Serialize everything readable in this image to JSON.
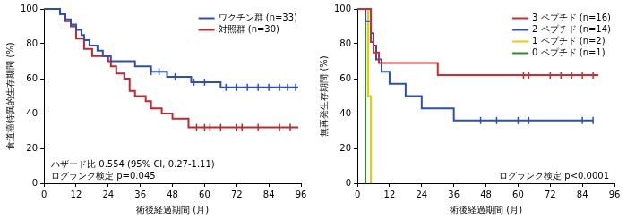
{
  "chart_data": [
    {
      "type": "line",
      "line_style": "step",
      "x_label": "術後経過期間 (月)",
      "y_label": "食道癌特異的生存期間 (%)",
      "xlim": [
        0,
        96
      ],
      "xticks": [
        0,
        12,
        24,
        36,
        48,
        60,
        72,
        84,
        96
      ],
      "ylim": [
        0,
        100
      ],
      "yticks": [
        0,
        20,
        40,
        60,
        80,
        100
      ],
      "grid": false,
      "legend": "top-right",
      "annotations": [
        "ハザード比 0.554 (95% CI, 0.27-1.11)",
        "ログランク検定 p=0.045"
      ],
      "series": [
        {
          "name": "ワクチン群 (n=33)",
          "color": "#2a4fb8",
          "x": [
            0,
            6,
            8,
            10,
            12,
            14,
            15,
            17,
            20,
            22,
            25,
            34,
            40,
            46,
            55,
            66,
            95
          ],
          "values": [
            100,
            97,
            94,
            91,
            88,
            85,
            82,
            79,
            76,
            73,
            70,
            67,
            64,
            61,
            58,
            55,
            55
          ],
          "censored_x": [
            40,
            43,
            49,
            56,
            60,
            68,
            72,
            76,
            80,
            84,
            88,
            91,
            94
          ],
          "censored_values": [
            64,
            64,
            61,
            58,
            58,
            55,
            55,
            55,
            55,
            55,
            55,
            55,
            55
          ]
        },
        {
          "name": "対照群 (n=30)",
          "color": "#c3262e",
          "x": [
            0,
            6,
            8,
            10,
            12,
            15,
            18,
            24,
            25,
            27,
            30,
            32,
            34,
            38,
            40,
            44,
            48,
            54,
            95
          ],
          "values": [
            100,
            97,
            93,
            90,
            83,
            77,
            73,
            70,
            67,
            63,
            60,
            53,
            50,
            47,
            43,
            40,
            37,
            32,
            32
          ],
          "censored_x": [
            57,
            60,
            62,
            66,
            72,
            74,
            80,
            88,
            92
          ],
          "censored_values": [
            32,
            32,
            32,
            32,
            32,
            32,
            32,
            32,
            32
          ]
        }
      ]
    },
    {
      "type": "line",
      "line_style": "step",
      "x_label": "術後経過期間 (月)",
      "y_label": "無再発生存期間 (%)",
      "xlim": [
        0,
        96
      ],
      "xticks": [
        0,
        12,
        24,
        36,
        48,
        60,
        72,
        84,
        96
      ],
      "ylim": [
        0,
        100
      ],
      "yticks": [
        0,
        20,
        40,
        60,
        80,
        100
      ],
      "grid": false,
      "legend": "top-right",
      "annotations": [
        "ログランク検定 p<0.0001"
      ],
      "series": [
        {
          "name": "3 ペプチド (n=16)",
          "color": "#d42a2a",
          "x": [
            0,
            5,
            6,
            8,
            30,
            90
          ],
          "values": [
            100,
            81,
            75,
            69,
            62,
            62
          ],
          "censored_x": [
            62,
            64,
            72,
            76,
            80,
            84,
            88
          ],
          "censored_values": [
            62,
            62,
            62,
            62,
            62,
            62,
            62
          ]
        },
        {
          "name": "2 ペプチド (n=14)",
          "color": "#2a4fb8",
          "x": [
            0,
            3,
            5,
            6,
            7,
            9,
            12,
            18,
            24,
            36,
            88
          ],
          "values": [
            100,
            93,
            86,
            79,
            71,
            64,
            57,
            50,
            43,
            36,
            36
          ],
          "censored_x": [
            46,
            52,
            60,
            64,
            84,
            88
          ],
          "censored_values": [
            36,
            36,
            36,
            36,
            36,
            36
          ]
        },
        {
          "name": "1 ペプチド (n=2)",
          "color": "#f0c800",
          "x": [
            0,
            4,
            5
          ],
          "values": [
            100,
            50,
            0
          ]
        },
        {
          "name": "0 ペプチド (n=1)",
          "color": "#2e8b2e",
          "x": [
            0,
            3
          ],
          "values": [
            100,
            0
          ]
        }
      ]
    }
  ]
}
